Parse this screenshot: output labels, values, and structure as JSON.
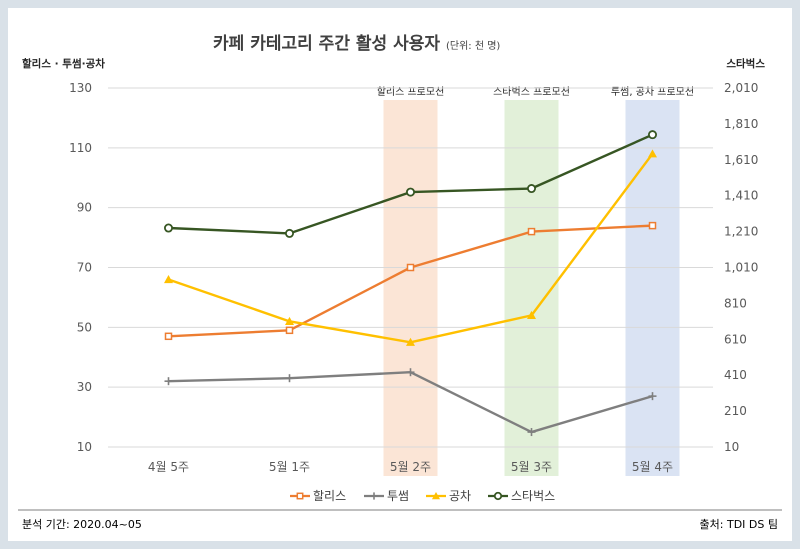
{
  "chart_data": {
    "type": "line",
    "title": "카페 카테고리 주간 활성 사용자",
    "unit_note": "(단위: 천 명)",
    "left_axis_label": "할리스 · 투썸·공차",
    "right_axis_label": "스타벅스",
    "categories": [
      "4월 5주",
      "5월 1주",
      "5월 2주",
      "5월 3주",
      "5월 4주"
    ],
    "left_axis": {
      "min": 10,
      "max": 130,
      "ticks": [
        "10",
        "30",
        "50",
        "70",
        "90",
        "110",
        "130"
      ]
    },
    "right_axis": {
      "min": 10,
      "max": 2010,
      "ticks": [
        "10",
        "210",
        "410",
        "610",
        "810",
        "1,010",
        "1,210",
        "1,410",
        "1,610",
        "1,810",
        "2,010"
      ]
    },
    "grid": true,
    "legend_position": "bottom",
    "promotions": [
      {
        "label": "할리스 프로모션",
        "category_index": 2,
        "color": "#fbe5d6"
      },
      {
        "label": "스타벅스 프로모션",
        "category_index": 3,
        "color": "#e2f0d9"
      },
      {
        "label": "투썸, 공차 프로모션",
        "category_index": 4,
        "color": "#dae3f3"
      }
    ],
    "series": [
      {
        "name": "할리스",
        "axis": "left",
        "color": "#ed7d31",
        "marker": "square",
        "values": [
          47,
          49,
          70,
          82,
          84
        ]
      },
      {
        "name": "투썸",
        "axis": "left",
        "color": "#7f7f7f",
        "marker": "plus",
        "values": [
          32,
          33,
          35,
          15,
          27
        ]
      },
      {
        "name": "공차",
        "axis": "left",
        "color": "#ffc000",
        "marker": "triangle",
        "values": [
          66,
          52,
          45,
          54,
          108
        ]
      },
      {
        "name": "스타벅스",
        "axis": "right",
        "color": "#375623",
        "marker": "circle",
        "values": [
          1230,
          1200,
          1430,
          1450,
          1750
        ]
      }
    ]
  },
  "footer": {
    "period": "분석 기간: 2020.04~05",
    "source": "출처: TDI DS 팀"
  }
}
